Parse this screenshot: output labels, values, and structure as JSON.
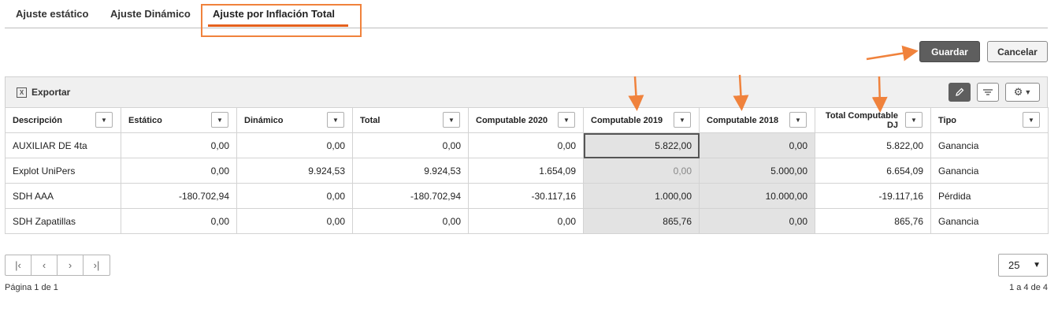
{
  "tabs": [
    {
      "label": "Ajuste estático"
    },
    {
      "label": "Ajuste Dinámico"
    },
    {
      "label": "Ajuste por Inflación Total",
      "active": true
    }
  ],
  "actions": {
    "save_label": "Guardar",
    "cancel_label": "Cancelar"
  },
  "toolbar": {
    "export_label": "Exportar",
    "export_icon": "excel-icon",
    "tools": [
      "pencil-icon",
      "list-lines-icon",
      "gear-icon"
    ]
  },
  "table": {
    "columns": [
      "Descripción",
      "Estático",
      "Dinámico",
      "Total",
      "Computable 2020",
      "Computable 2019",
      "Computable 2018",
      "Total Computable DJ",
      "Tipo"
    ],
    "rows": [
      [
        "AUXILIAR DE 4ta",
        "0,00",
        "0,00",
        "0,00",
        "0,00",
        "5.822,00",
        "0,00",
        "5.822,00",
        "Ganancia"
      ],
      [
        "Explot UniPers",
        "0,00",
        "9.924,53",
        "9.924,53",
        "1.654,09",
        "0,00",
        "5.000,00",
        "6.654,09",
        "Ganancia"
      ],
      [
        "SDH AAA",
        "-180.702,94",
        "0,00",
        "-180.702,94",
        "-30.117,16",
        "1.000,00",
        "10.000,00",
        "-19.117,16",
        "Pérdida"
      ],
      [
        "SDH Zapatillas",
        "0,00",
        "0,00",
        "0,00",
        "0,00",
        "865,76",
        "0,00",
        "865,76",
        "Ganancia"
      ]
    ]
  },
  "pager": {
    "page_size": "25",
    "page_info": "Página 1 de 1",
    "range_info": "1 a 4 de 4"
  },
  "colors": {
    "accent": "#e5611e",
    "annotation": "#f0823c",
    "primary_button": "#5e5e5e"
  }
}
